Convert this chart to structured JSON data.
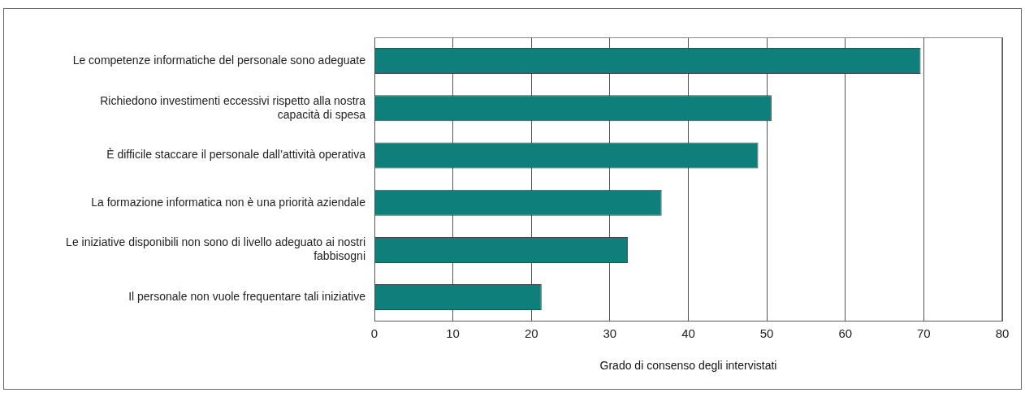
{
  "chart_data": {
    "type": "bar",
    "orientation": "horizontal",
    "categories": [
      "Le competenze informatiche del personale sono adeguate",
      "Richiedono investimenti eccessivi rispetto alla nostra capacità di spesa",
      "È difficile staccare il personale dall’attività operativa",
      "La formazione informatica non è una priorità aziendale",
      "Le iniziative disponibili non sono di livello adeguato ai nostri fabbisogni",
      "Il personale non vuole frequentare tali iniziative"
    ],
    "values": [
      69.6,
      50.6,
      48.9,
      36.6,
      32.3,
      21.3
    ],
    "color": "#0e7f7a",
    "xlabel": "Grado di consenso degli intervistati",
    "xlim": [
      0,
      80
    ],
    "xticks": [
      0,
      10,
      20,
      30,
      40,
      50,
      60,
      70,
      80
    ],
    "grid": "x",
    "legend": false
  }
}
